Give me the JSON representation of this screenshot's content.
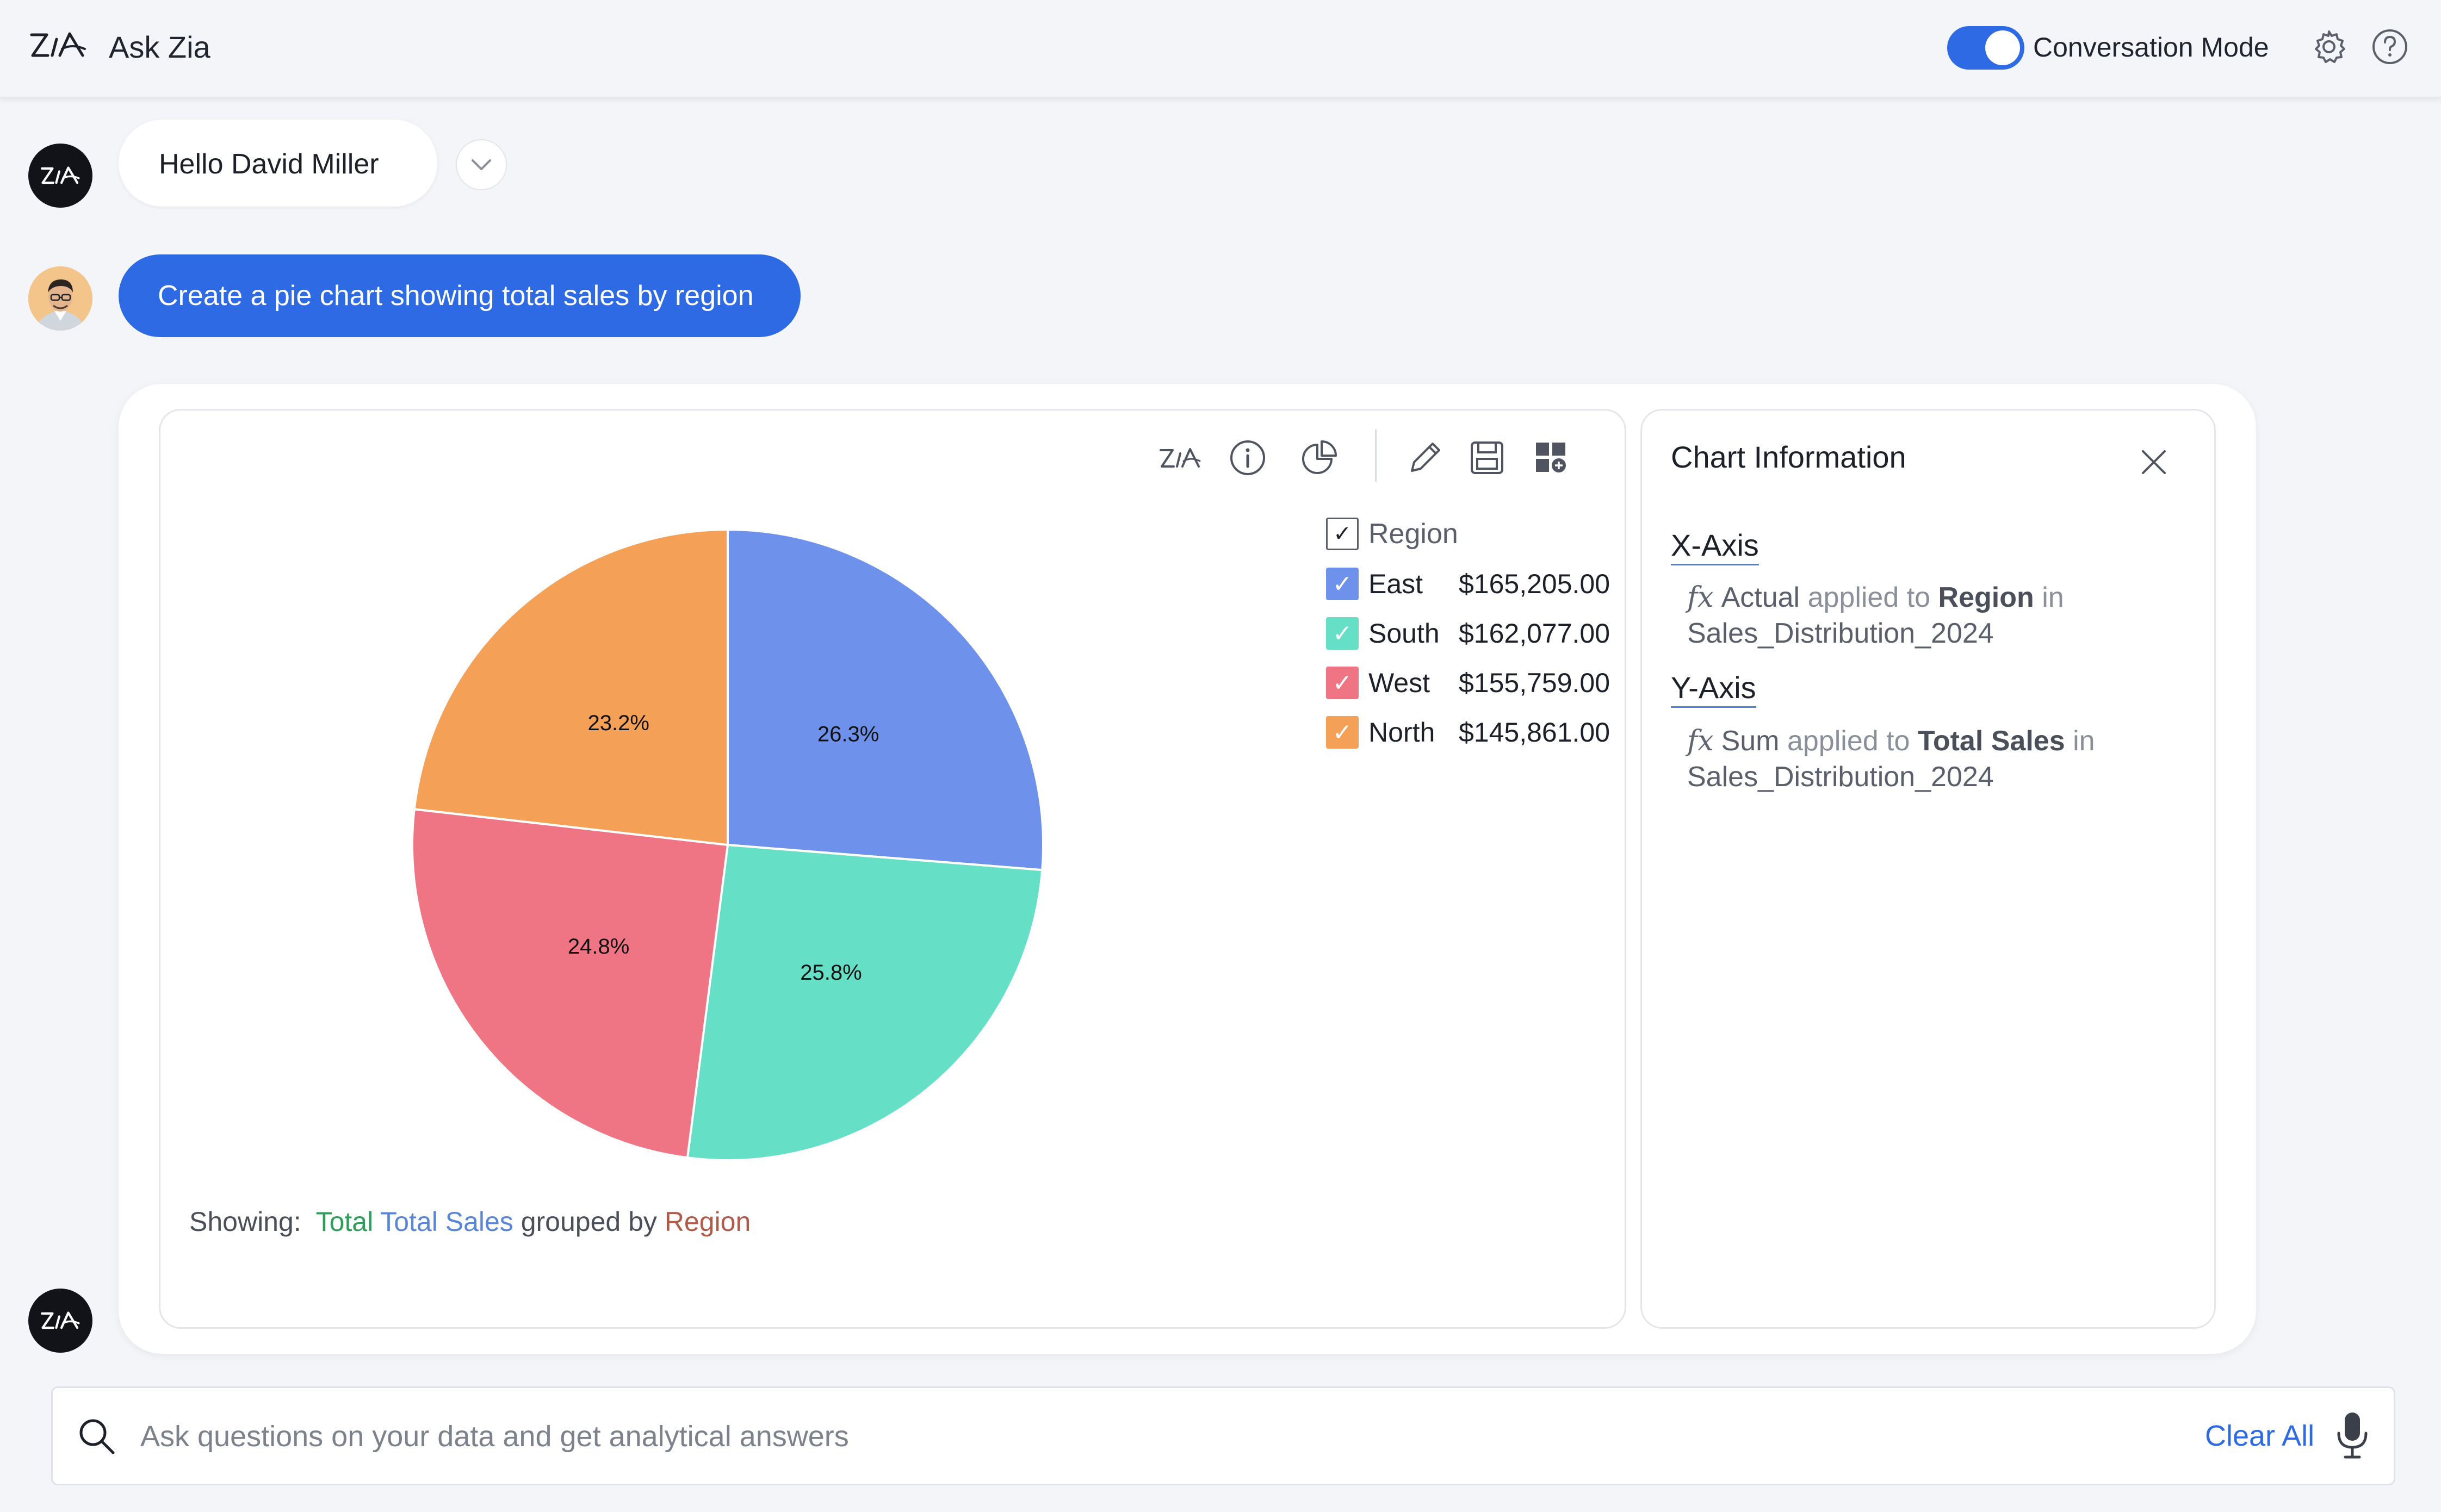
{
  "header": {
    "app_title": "Ask Zia",
    "conversation_mode_label": "Conversation Mode",
    "conversation_mode_on": true
  },
  "chat": {
    "greeting": "Hello David Miller",
    "user_prompt": "Create a pie chart showing total sales by region"
  },
  "chart_panel": {
    "legend": {
      "header": "Region",
      "items": [
        {
          "name": "East",
          "value": "$165,205.00",
          "color": "#6e91eb"
        },
        {
          "name": "South",
          "value": "$162,077.00",
          "color": "#66dfc7"
        },
        {
          "name": "West",
          "value": "$155,759.00",
          "color": "#f07584"
        },
        {
          "name": "North",
          "value": "$145,861.00",
          "color": "#f5a057"
        }
      ]
    },
    "showing": {
      "prefix": "Showing:",
      "agg": "Total",
      "measure": "Total Sales",
      "grouped_by": "grouped by",
      "dimension": "Region"
    },
    "toolbar_icons": [
      "zia-icon",
      "info-icon",
      "chart-type-icon",
      "edit-icon",
      "save-icon",
      "add-to-dashboard-icon"
    ]
  },
  "chart_data": {
    "type": "pie",
    "categories": [
      "East",
      "South",
      "West",
      "North"
    ],
    "values": [
      165205,
      162077,
      155759,
      145861
    ],
    "percent_labels": [
      "26.3%",
      "25.8%",
      "24.8%",
      "23.2%"
    ],
    "colors": [
      "#6e91eb",
      "#66dfc7",
      "#f07584",
      "#f5a057"
    ],
    "legend_title": "Region",
    "legend_position": "right"
  },
  "info_panel": {
    "title": "Chart Information",
    "x_axis": {
      "title": "X-Axis",
      "fx": "fx",
      "function": "Actual",
      "applied_to": "applied to",
      "column": "Region",
      "in": "in",
      "table": "Sales_Distribution_2024"
    },
    "y_axis": {
      "title": "Y-Axis",
      "fx": "fx",
      "function": "Sum",
      "applied_to": "applied to",
      "column": "Total Sales",
      "in": "in",
      "table": "Sales_Distribution_2024"
    }
  },
  "search": {
    "placeholder": "Ask questions on your data and get analytical answers",
    "value": "",
    "clear_label": "Clear All"
  }
}
